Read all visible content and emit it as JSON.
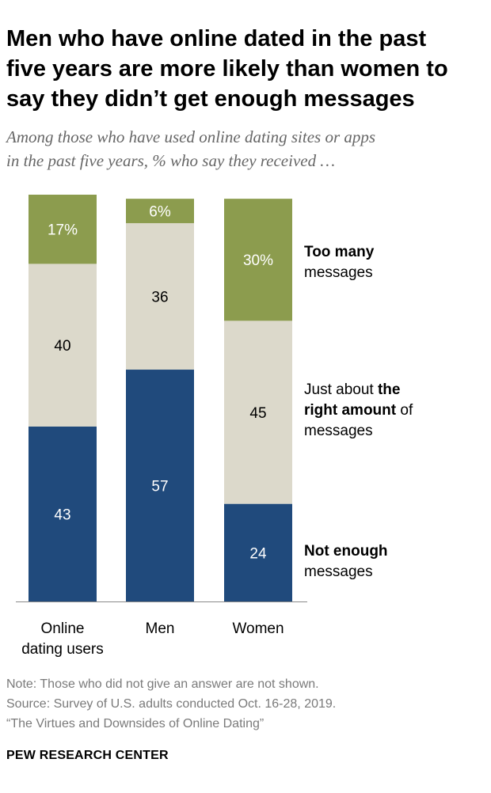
{
  "title_lines": [
    "Men who have online dated in the past",
    "five years are more likely than women to",
    "say they didn’t get enough messages"
  ],
  "subtitle_lines": [
    "Among those who have used online dating sites or apps",
    "in the past five years, % who say they received …"
  ],
  "legend": {
    "too_many": {
      "bold": "Too many",
      "rest": "messages"
    },
    "right_amount": {
      "pre": "Just about ",
      "bold1": "the",
      "bold2": "right amount",
      "post": " of",
      "line3": "messages"
    },
    "not_enough": {
      "bold": "Not enough",
      "rest": "messages"
    }
  },
  "chart_data": {
    "type": "bar",
    "stacked": true,
    "categories": [
      "Online dating users",
      "Men",
      "Women"
    ],
    "category_label_lines": [
      [
        "Online",
        "dating users"
      ],
      [
        "Men"
      ],
      [
        "Women"
      ]
    ],
    "series": [
      {
        "name": "Not enough messages",
        "values": [
          43,
          57,
          24
        ],
        "labels": [
          "43",
          "57",
          "24"
        ],
        "color": "#204a7c",
        "label_color": "#ffffff"
      },
      {
        "name": "Just about the right amount of messages",
        "values": [
          40,
          36,
          45
        ],
        "labels": [
          "40",
          "36",
          "45"
        ],
        "color": "#dcd9cb",
        "label_color": "#000000"
      },
      {
        "name": "Too many messages",
        "values": [
          17,
          6,
          30
        ],
        "labels": [
          "17%",
          "6%",
          "30%"
        ],
        "color": "#8c9c4e",
        "label_color": "#ffffff"
      }
    ],
    "ylim": [
      0,
      100
    ],
    "grid": false,
    "legend_position": "right"
  },
  "footer": {
    "note": "Note: Those who did not give an answer are not shown.",
    "source": "Source: Survey of U.S. adults conducted Oct. 16-28, 2019.",
    "report": "“The Virtues and Downsides of Online Dating”"
  },
  "brand": "PEW RESEARCH CENTER"
}
